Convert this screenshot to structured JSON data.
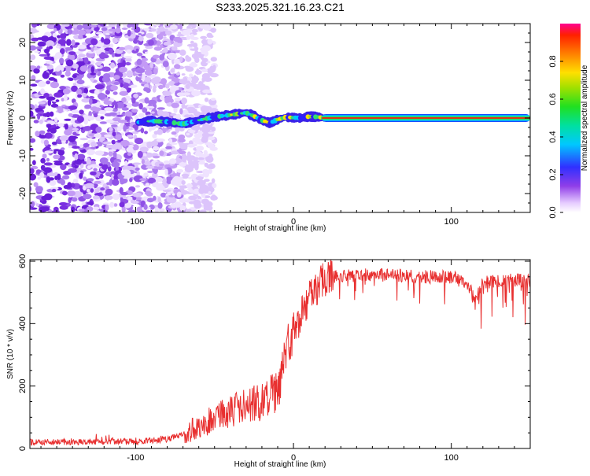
{
  "title": "S233.2025.321.16.23.C21",
  "chart_data": [
    {
      "type": "heatmap",
      "name": "spectrogram",
      "xlabel": "Height of straight line (km)",
      "ylabel": "Frequency (Hz)",
      "xlim": [
        -167,
        150
      ],
      "ylim": [
        -25,
        25
      ],
      "xticks": [
        -100,
        0,
        100
      ],
      "xtick_labels": [
        "-100",
        "0",
        "100"
      ],
      "yticks": [
        -20,
        -10,
        0,
        10,
        20
      ],
      "ytick_labels": [
        "-20",
        "-10",
        "0",
        "10",
        "20"
      ],
      "description_series": {
        "noise_region_km": [
          -167,
          -70
        ],
        "signal_track": {
          "x": [
            -100,
            -90,
            -80,
            -70,
            -60,
            -50,
            -40,
            -30,
            -25,
            -20,
            -15,
            -10,
            -5,
            0,
            5,
            10,
            15,
            20,
            40,
            60,
            80,
            100,
            120,
            140,
            150
          ],
          "y": [
            -1.2,
            -0.8,
            -1.0,
            -1.6,
            -0.6,
            0.3,
            0.8,
            1.4,
            0.5,
            -0.6,
            -1.3,
            -0.4,
            0.2,
            0.1,
            0.0,
            0.4,
            0.3,
            0.0,
            0.0,
            0.0,
            0.0,
            0.0,
            0.0,
            0.0,
            0.0
          ]
        }
      },
      "colorbar": {
        "label": "Normalized spectral amplitude",
        "range": [
          0,
          1
        ],
        "ticks": [
          0.0,
          0.2,
          0.4,
          0.6,
          0.8
        ],
        "tick_labels": [
          "0.0",
          "0.2",
          "0.4",
          "0.6",
          "0.8"
        ]
      }
    },
    {
      "type": "line",
      "name": "snr",
      "xlabel": "Height of straight line (km)",
      "ylabel": "SNR (10 * v/v)",
      "xlim": [
        -167,
        150
      ],
      "ylim": [
        0,
        605
      ],
      "xticks": [
        -100,
        0,
        100
      ],
      "xtick_labels": [
        "-100",
        "0",
        "100"
      ],
      "yticks": [
        0,
        200,
        400,
        600
      ],
      "ytick_labels": [
        "0",
        "200",
        "400",
        "600"
      ],
      "color": "#e83030",
      "trend": {
        "x": [
          -167,
          -100,
          -80,
          -70,
          -60,
          -50,
          -40,
          -30,
          -20,
          -15,
          -10,
          -5,
          0,
          5,
          10,
          15,
          20,
          30,
          40,
          60,
          80,
          100,
          110,
          115,
          120,
          130,
          140,
          150
        ],
        "y": [
          20,
          22,
          30,
          45,
          70,
          95,
          120,
          140,
          150,
          165,
          180,
          300,
          380,
          430,
          480,
          520,
          545,
          555,
          555,
          555,
          550,
          550,
          530,
          480,
          530,
          540,
          540,
          540
        ]
      }
    }
  ]
}
